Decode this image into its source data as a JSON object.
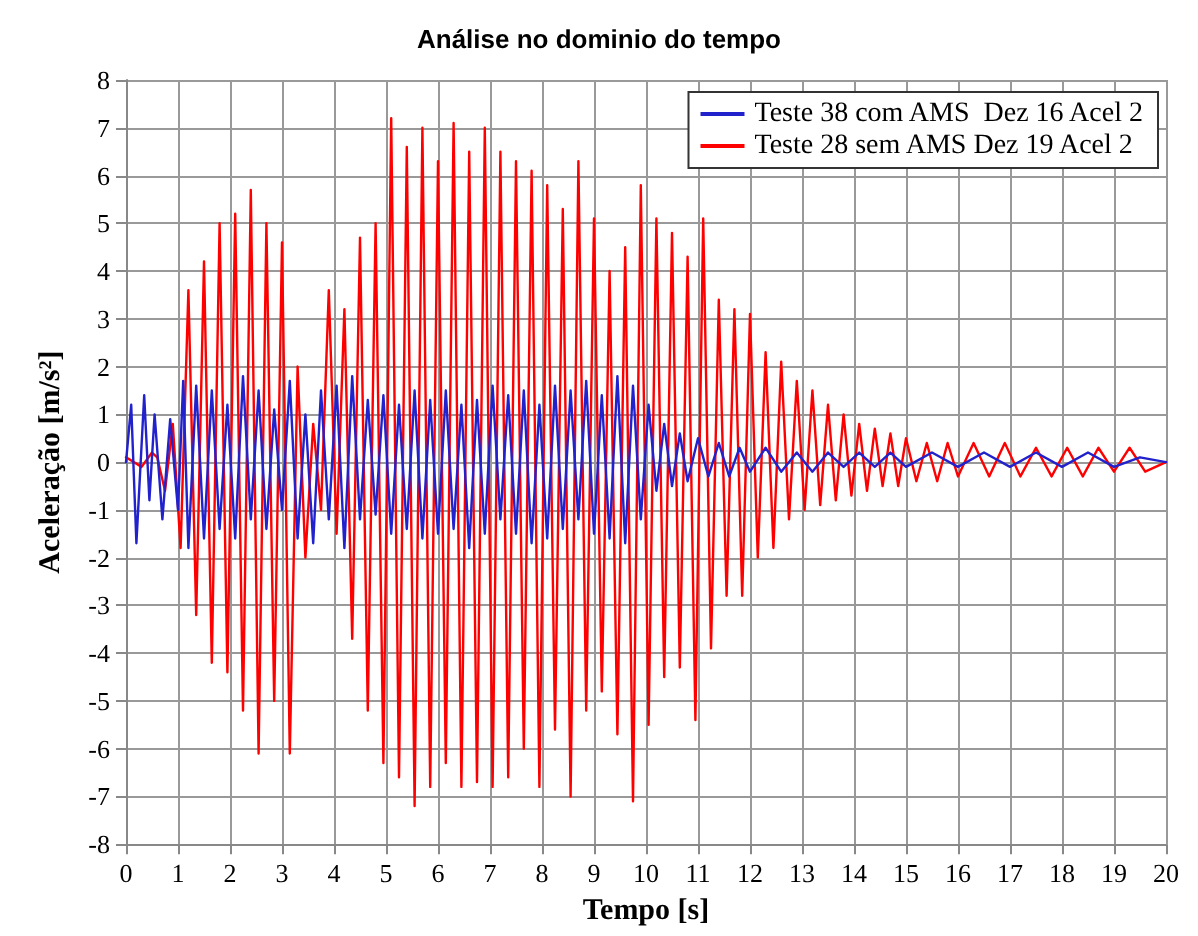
{
  "chart_data": {
    "type": "line",
    "title": "Análise no dominio do tempo",
    "xlabel": "Tempo [s]",
    "ylabel": "Aceleração [m/s²]",
    "xlim": [
      0,
      20
    ],
    "xticks": [
      0,
      1,
      2,
      3,
      4,
      5,
      6,
      7,
      8,
      9,
      10,
      11,
      12,
      13,
      14,
      15,
      16,
      17,
      18,
      19,
      20
    ],
    "ylim": [
      -8,
      8
    ],
    "yticks": [
      -8,
      -7,
      -6,
      -5,
      -4,
      -3,
      -2,
      -1,
      0,
      1,
      2,
      3,
      4,
      5,
      6,
      7,
      8
    ],
    "grid": true,
    "legend": "top right",
    "marker": "none",
    "line_style": "solid",
    "series": [
      {
        "name": "Teste 38 com AMS  Dez 16 Acel 2",
        "color": "#2222cc",
        "x": [
          0,
          0.1,
          0.2,
          0.35,
          0.45,
          0.55,
          0.7,
          0.85,
          1.0,
          1.1,
          1.2,
          1.35,
          1.5,
          1.65,
          1.8,
          1.95,
          2.1,
          2.25,
          2.4,
          2.55,
          2.7,
          2.85,
          3.0,
          3.15,
          3.3,
          3.45,
          3.6,
          3.75,
          3.9,
          4.05,
          4.2,
          4.35,
          4.5,
          4.65,
          4.8,
          4.95,
          5.1,
          5.25,
          5.4,
          5.55,
          5.7,
          5.85,
          6.0,
          6.15,
          6.3,
          6.45,
          6.6,
          6.75,
          6.9,
          7.05,
          7.2,
          7.35,
          7.5,
          7.65,
          7.8,
          7.95,
          8.1,
          8.25,
          8.4,
          8.55,
          8.7,
          8.85,
          9.0,
          9.15,
          9.3,
          9.45,
          9.6,
          9.75,
          9.9,
          10.05,
          10.2,
          10.35,
          10.5,
          10.65,
          10.8,
          11.0,
          11.2,
          11.4,
          11.6,
          11.8,
          12.0,
          12.3,
          12.6,
          12.9,
          13.2,
          13.5,
          13.8,
          14.1,
          14.4,
          14.7,
          15.0,
          15.5,
          16.0,
          16.5,
          17.0,
          17.5,
          18.0,
          18.5,
          19.0,
          19.5,
          20.0
        ],
        "values": [
          0,
          1.2,
          -1.7,
          1.4,
          -0.8,
          1.0,
          -1.2,
          0.9,
          -1.0,
          1.7,
          -1.8,
          1.6,
          -1.6,
          1.5,
          -1.4,
          1.2,
          -1.6,
          1.8,
          -1.2,
          1.5,
          -1.4,
          1.1,
          -1.0,
          1.7,
          -1.6,
          1.0,
          -1.7,
          1.5,
          -1.2,
          1.6,
          -1.8,
          1.8,
          -1.2,
          1.3,
          -1.1,
          1.4,
          -1.5,
          1.2,
          -1.4,
          1.5,
          -1.6,
          1.3,
          -1.5,
          1.5,
          -1.4,
          1.2,
          -1.8,
          1.3,
          -1.5,
          1.6,
          -1.2,
          1.4,
          -1.5,
          1.5,
          -1.7,
          1.2,
          -1.6,
          1.6,
          -1.4,
          1.5,
          -1.2,
          1.7,
          -1.5,
          1.4,
          -1.6,
          1.8,
          -1.7,
          1.6,
          -1.2,
          1.2,
          -0.6,
          0.8,
          -0.5,
          0.6,
          -0.4,
          0.5,
          -0.3,
          0.4,
          -0.3,
          0.3,
          -0.2,
          0.3,
          -0.2,
          0.2,
          -0.2,
          0.2,
          -0.1,
          0.2,
          -0.1,
          0.2,
          -0.1,
          0.2,
          -0.1,
          0.2,
          -0.1,
          0.2,
          -0.1,
          0.2,
          -0.1,
          0.1,
          0
        ]
      },
      {
        "name": "Teste 28 sem AMS Dez 19 Acel 2",
        "color": "#ff0000",
        "x": [
          0,
          0.3,
          0.5,
          0.6,
          0.75,
          0.9,
          1.05,
          1.2,
          1.35,
          1.5,
          1.65,
          1.8,
          1.95,
          2.1,
          2.25,
          2.4,
          2.55,
          2.7,
          2.85,
          3.0,
          3.15,
          3.3,
          3.45,
          3.6,
          3.75,
          3.9,
          4.05,
          4.2,
          4.35,
          4.5,
          4.65,
          4.8,
          4.95,
          5.1,
          5.25,
          5.4,
          5.55,
          5.7,
          5.85,
          6.0,
          6.15,
          6.3,
          6.45,
          6.6,
          6.75,
          6.9,
          7.05,
          7.2,
          7.35,
          7.5,
          7.65,
          7.8,
          7.95,
          8.1,
          8.25,
          8.4,
          8.55,
          8.7,
          8.85,
          9.0,
          9.15,
          9.3,
          9.45,
          9.6,
          9.75,
          9.9,
          10.05,
          10.2,
          10.35,
          10.5,
          10.65,
          10.8,
          10.95,
          11.1,
          11.25,
          11.4,
          11.55,
          11.7,
          11.85,
          12.0,
          12.15,
          12.3,
          12.45,
          12.6,
          12.75,
          12.9,
          13.05,
          13.2,
          13.35,
          13.5,
          13.65,
          13.8,
          13.95,
          14.1,
          14.25,
          14.4,
          14.55,
          14.7,
          14.85,
          15.0,
          15.2,
          15.4,
          15.6,
          15.8,
          16.0,
          16.3,
          16.6,
          16.9,
          17.2,
          17.5,
          17.8,
          18.1,
          18.4,
          18.7,
          19.0,
          19.3,
          19.6,
          20.0
        ],
        "values": [
          0.1,
          -0.1,
          0.2,
          0.1,
          -0.6,
          0.8,
          -1.8,
          3.6,
          -3.2,
          4.2,
          -4.2,
          5.0,
          -4.4,
          5.2,
          -5.2,
          5.7,
          -6.1,
          5.0,
          -5.0,
          4.6,
          -6.1,
          2.0,
          -2.0,
          0.8,
          -1.0,
          3.6,
          -1.5,
          3.2,
          -3.7,
          4.7,
          -5.2,
          5.0,
          -6.3,
          7.2,
          -6.6,
          6.6,
          -7.2,
          7.0,
          -6.8,
          6.3,
          -6.3,
          7.1,
          -6.8,
          6.5,
          -6.7,
          7.0,
          -6.8,
          6.5,
          -6.6,
          6.3,
          -6.0,
          6.1,
          -6.8,
          5.8,
          -5.6,
          5.3,
          -7.0,
          6.3,
          -5.2,
          5.1,
          -4.8,
          4.0,
          -5.7,
          4.5,
          -7.1,
          5.8,
          -5.5,
          5.1,
          -4.5,
          4.8,
          -4.3,
          4.3,
          -5.4,
          5.1,
          -3.9,
          3.4,
          -2.8,
          3.2,
          -2.8,
          3.1,
          -2.0,
          2.3,
          -1.8,
          2.1,
          -1.2,
          1.7,
          -1.0,
          1.5,
          -0.9,
          1.2,
          -0.8,
          1.0,
          -0.7,
          0.8,
          -0.6,
          0.7,
          -0.5,
          0.6,
          -0.5,
          0.5,
          -0.4,
          0.4,
          -0.4,
          0.4,
          -0.3,
          0.4,
          -0.3,
          0.4,
          -0.3,
          0.3,
          -0.3,
          0.3,
          -0.3,
          0.3,
          -0.2,
          0.3,
          -0.2,
          0
        ]
      }
    ]
  }
}
